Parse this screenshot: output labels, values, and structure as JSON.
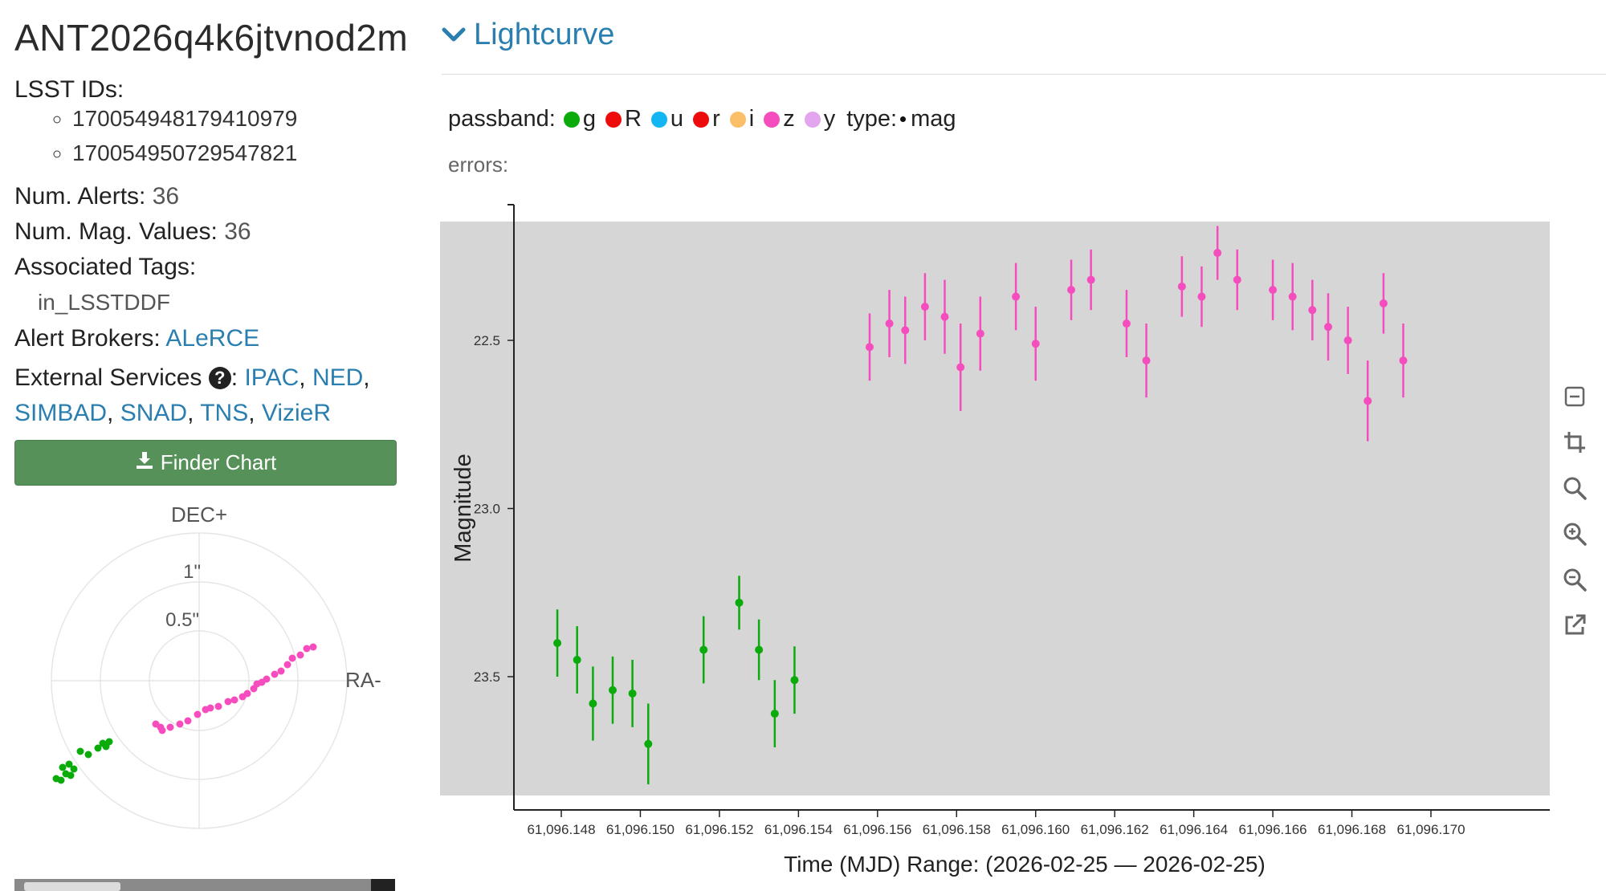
{
  "object": {
    "title": "ANT2026q4k6jtvnod2m",
    "lsst_ids_label": "LSST IDs:",
    "lsst_ids": [
      "170054948179410979",
      "170054950729547821"
    ],
    "num_alerts_label": "Num. Alerts:",
    "num_alerts": "36",
    "num_mag_label": "Num. Mag. Values:",
    "num_mag": "36",
    "tags_label": "Associated Tags:",
    "tags": [
      "in_LSSTDDF"
    ],
    "brokers_label": "Alert Brokers:",
    "brokers": [
      "ALeRCE"
    ],
    "external_label": "External Services",
    "external_colon": ":",
    "external": [
      "IPAC",
      "NED",
      "SIMBAD",
      "SNAD",
      "TNS",
      "VizieR"
    ],
    "finder_label": "Finder Chart"
  },
  "icons": {
    "finder": "download-icon",
    "help": "question-circle-icon",
    "collapse": "chevron-down-icon"
  },
  "polar": {
    "dec_label": "DEC+",
    "ra_label": "RA-",
    "ring_labels": [
      "1\"",
      "0.5\""
    ]
  },
  "lightcurve": {
    "header": "Lightcurve",
    "passband_label": "passband:",
    "passbands": [
      {
        "name": "g",
        "color": "#0aab0a"
      },
      {
        "name": "R",
        "color": "#ee0b0b"
      },
      {
        "name": "u",
        "color": "#13b5f2"
      },
      {
        "name": "r",
        "color": "#ee0b0b"
      },
      {
        "name": "i",
        "color": "#fbbf6a"
      },
      {
        "name": "z",
        "color": "#f54dbe"
      },
      {
        "name": "y",
        "color": "#e3a6ee"
      }
    ],
    "type_label": "type:",
    "type_value": "mag",
    "errors_label": "errors:",
    "toolbar": [
      "collapse-icon",
      "crop-icon",
      "search-icon",
      "zoom-in-icon",
      "zoom-out-icon",
      "external-link-icon"
    ]
  },
  "chart_data": {
    "type": "scatter",
    "ylabel": "Magnitude",
    "xlabel": "Time (MJD) Range: (2026-02-25 — 2026-02-25)",
    "ylim_inverted": true,
    "xticks": [
      "61,096.148",
      "61,096.150",
      "61,096.152",
      "61,096.154",
      "61,096.156",
      "61,096.158",
      "61,096.160",
      "61,096.162",
      "61,096.164",
      "61,096.166",
      "61,096.168",
      "61,096.170"
    ],
    "yticks": [
      "22.5",
      "23.0",
      "23.5"
    ],
    "series": [
      {
        "name": "g",
        "color": "#0aab0a",
        "points": [
          {
            "x": 61096.1479,
            "y": 23.4,
            "err": 0.1
          },
          {
            "x": 61096.1484,
            "y": 23.45,
            "err": 0.1
          },
          {
            "x": 61096.1488,
            "y": 23.58,
            "err": 0.11
          },
          {
            "x": 61096.1493,
            "y": 23.54,
            "err": 0.1
          },
          {
            "x": 61096.1498,
            "y": 23.55,
            "err": 0.1
          },
          {
            "x": 61096.1502,
            "y": 23.7,
            "err": 0.12
          },
          {
            "x": 61096.1516,
            "y": 23.42,
            "err": 0.1
          },
          {
            "x": 61096.1525,
            "y": 23.28,
            "err": 0.08
          },
          {
            "x": 61096.153,
            "y": 23.42,
            "err": 0.09
          },
          {
            "x": 61096.1534,
            "y": 23.61,
            "err": 0.1
          },
          {
            "x": 61096.1539,
            "y": 23.51,
            "err": 0.1
          }
        ]
      },
      {
        "name": "z",
        "color": "#f54dbe",
        "points": [
          {
            "x": 61096.1558,
            "y": 22.52,
            "err": 0.1
          },
          {
            "x": 61096.1563,
            "y": 22.45,
            "err": 0.1
          },
          {
            "x": 61096.1567,
            "y": 22.47,
            "err": 0.1
          },
          {
            "x": 61096.1572,
            "y": 22.4,
            "err": 0.1
          },
          {
            "x": 61096.1577,
            "y": 22.43,
            "err": 0.11
          },
          {
            "x": 61096.1581,
            "y": 22.58,
            "err": 0.13
          },
          {
            "x": 61096.1586,
            "y": 22.48,
            "err": 0.11
          },
          {
            "x": 61096.1595,
            "y": 22.37,
            "err": 0.1
          },
          {
            "x": 61096.16,
            "y": 22.51,
            "err": 0.11
          },
          {
            "x": 61096.1609,
            "y": 22.35,
            "err": 0.09
          },
          {
            "x": 61096.1614,
            "y": 22.32,
            "err": 0.09
          },
          {
            "x": 61096.1623,
            "y": 22.45,
            "err": 0.1
          },
          {
            "x": 61096.1628,
            "y": 22.56,
            "err": 0.11
          },
          {
            "x": 61096.1637,
            "y": 22.34,
            "err": 0.09
          },
          {
            "x": 61096.1642,
            "y": 22.37,
            "err": 0.09
          },
          {
            "x": 61096.1646,
            "y": 22.24,
            "err": 0.08
          },
          {
            "x": 61096.1651,
            "y": 22.32,
            "err": 0.09
          },
          {
            "x": 61096.166,
            "y": 22.35,
            "err": 0.09
          },
          {
            "x": 61096.1665,
            "y": 22.37,
            "err": 0.1
          },
          {
            "x": 61096.167,
            "y": 22.41,
            "err": 0.09
          },
          {
            "x": 61096.1674,
            "y": 22.46,
            "err": 0.1
          },
          {
            "x": 61096.1679,
            "y": 22.5,
            "err": 0.1
          },
          {
            "x": 61096.1684,
            "y": 22.68,
            "err": 0.12
          },
          {
            "x": 61096.1688,
            "y": 22.39,
            "err": 0.09
          },
          {
            "x": 61096.1693,
            "y": 22.56,
            "err": 0.11
          }
        ]
      }
    ]
  }
}
